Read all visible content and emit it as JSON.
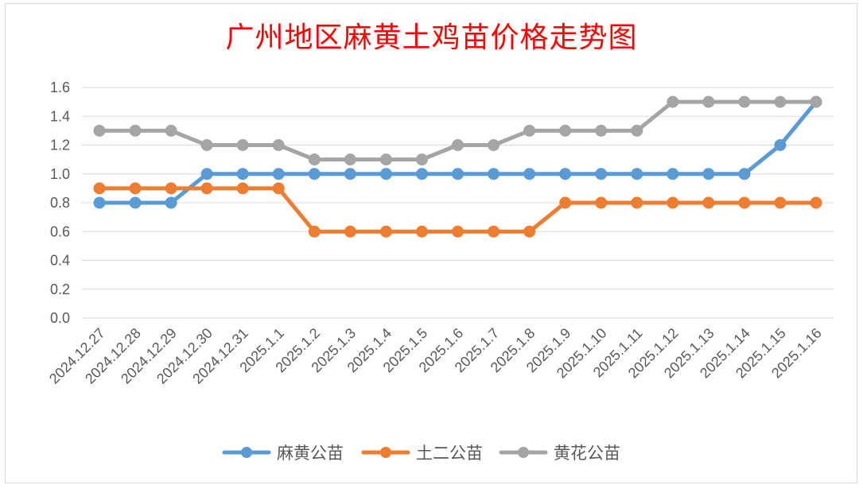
{
  "chart_data": {
    "type": "line",
    "title": "广州地区麻黄土鸡苗价格走势图",
    "xlabel": "",
    "ylabel": "",
    "ylim": [
      0,
      1.6
    ],
    "yticks": [
      "0.0",
      "0.2",
      "0.4",
      "0.6",
      "0.8",
      "1.0",
      "1.2",
      "1.4",
      "1.6"
    ],
    "grid": true,
    "legend_position": "bottom",
    "categories": [
      "2024.12.27",
      "2024.12.28",
      "2024.12.29",
      "2024.12.30",
      "2024.12.31",
      "2025.1.1",
      "2025.1.2",
      "2025.1.3",
      "2025.1.4",
      "2025.1.5",
      "2025.1.6",
      "2025.1.7",
      "2025.1.8",
      "2025.1.9",
      "2025.1.10",
      "2025.1.11",
      "2025.1.12",
      "2025.1.13",
      "2025.1.14",
      "2025.1.15",
      "2025.1.16"
    ],
    "series": [
      {
        "name": "麻黄公苗",
        "color": "#5b9bd5",
        "values": [
          0.8,
          0.8,
          0.8,
          1.0,
          1.0,
          1.0,
          1.0,
          1.0,
          1.0,
          1.0,
          1.0,
          1.0,
          1.0,
          1.0,
          1.0,
          1.0,
          1.0,
          1.0,
          1.0,
          1.2,
          1.5
        ]
      },
      {
        "name": "土二公苗",
        "color": "#ed7d31",
        "values": [
          0.9,
          0.9,
          0.9,
          0.9,
          0.9,
          0.9,
          0.6,
          0.6,
          0.6,
          0.6,
          0.6,
          0.6,
          0.6,
          0.8,
          0.8,
          0.8,
          0.8,
          0.8,
          0.8,
          0.8,
          0.8
        ]
      },
      {
        "name": "黄花公苗",
        "color": "#a5a5a5",
        "values": [
          1.3,
          1.3,
          1.3,
          1.2,
          1.2,
          1.2,
          1.1,
          1.1,
          1.1,
          1.1,
          1.2,
          1.2,
          1.3,
          1.3,
          1.3,
          1.3,
          1.5,
          1.5,
          1.5,
          1.5,
          1.5
        ]
      }
    ]
  }
}
